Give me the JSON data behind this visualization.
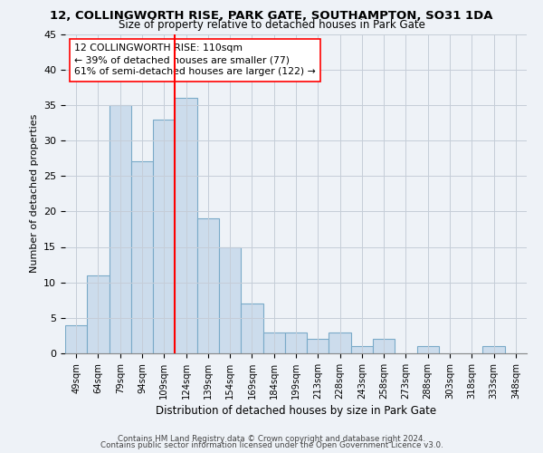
{
  "title1": "12, COLLINGWORTH RISE, PARK GATE, SOUTHAMPTON, SO31 1DA",
  "title2": "Size of property relative to detached houses in Park Gate",
  "xlabel": "Distribution of detached houses by size in Park Gate",
  "ylabel": "Number of detached properties",
  "categories": [
    "49sqm",
    "64sqm",
    "79sqm",
    "94sqm",
    "109sqm",
    "124sqm",
    "139sqm",
    "154sqm",
    "169sqm",
    "184sqm",
    "199sqm",
    "213sqm",
    "228sqm",
    "243sqm",
    "258sqm",
    "273sqm",
    "288sqm",
    "303sqm",
    "318sqm",
    "333sqm",
    "348sqm"
  ],
  "values": [
    4,
    11,
    35,
    27,
    33,
    36,
    19,
    15,
    7,
    3,
    3,
    2,
    3,
    1,
    2,
    0,
    1,
    0,
    0,
    1,
    0
  ],
  "bar_color": "#ccdcec",
  "bar_edge_color": "#7aaac8",
  "vline_index": 4,
  "vline_color": "red",
  "annotation_line1": "12 COLLINGWORTH RISE: 110sqm",
  "annotation_line2": "← 39% of detached houses are smaller (77)",
  "annotation_line3": "61% of semi-detached houses are larger (122) →",
  "annotation_box_color": "white",
  "annotation_box_edge": "red",
  "ylim": [
    0,
    45
  ],
  "yticks": [
    0,
    5,
    10,
    15,
    20,
    25,
    30,
    35,
    40,
    45
  ],
  "footer1": "Contains HM Land Registry data © Crown copyright and database right 2024.",
  "footer2": "Contains public sector information licensed under the Open Government Licence v3.0.",
  "bg_color": "#eef2f7",
  "grid_color": "#c5cdd8",
  "title1_fontsize": 9.5,
  "title2_fontsize": 8.5
}
